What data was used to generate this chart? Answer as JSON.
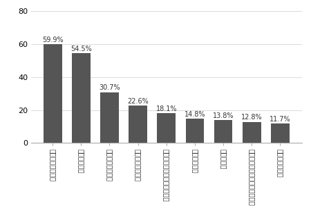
{
  "categories": [
    "クーラーを入れる",
    "扇風機を回す",
    "冷たいものを飲む",
    "部屋の窓を開ける",
    "シャワーを浴びる／入浴する",
    "帽子をかぶる",
    "日僘をさす",
    "カーテン／ブラインドを閉める",
    "すだれをつける"
  ],
  "values": [
    59.9,
    54.5,
    30.7,
    22.6,
    18.1,
    14.8,
    13.8,
    12.8,
    11.7
  ],
  "labels": [
    "59.9%",
    "54.5%",
    "30.7%",
    "22.6%",
    "18.1%",
    "14.8%",
    "13.8%",
    "12.8%",
    "11.7%"
  ],
  "bar_color": "#555555",
  "ylim": [
    0,
    80
  ],
  "yticks": [
    0,
    20,
    40,
    60,
    80
  ],
  "background_color": "#ffffff",
  "grid_color": "#cccccc",
  "label_fontsize": 7,
  "value_fontsize": 7,
  "tick_fontsize": 8
}
